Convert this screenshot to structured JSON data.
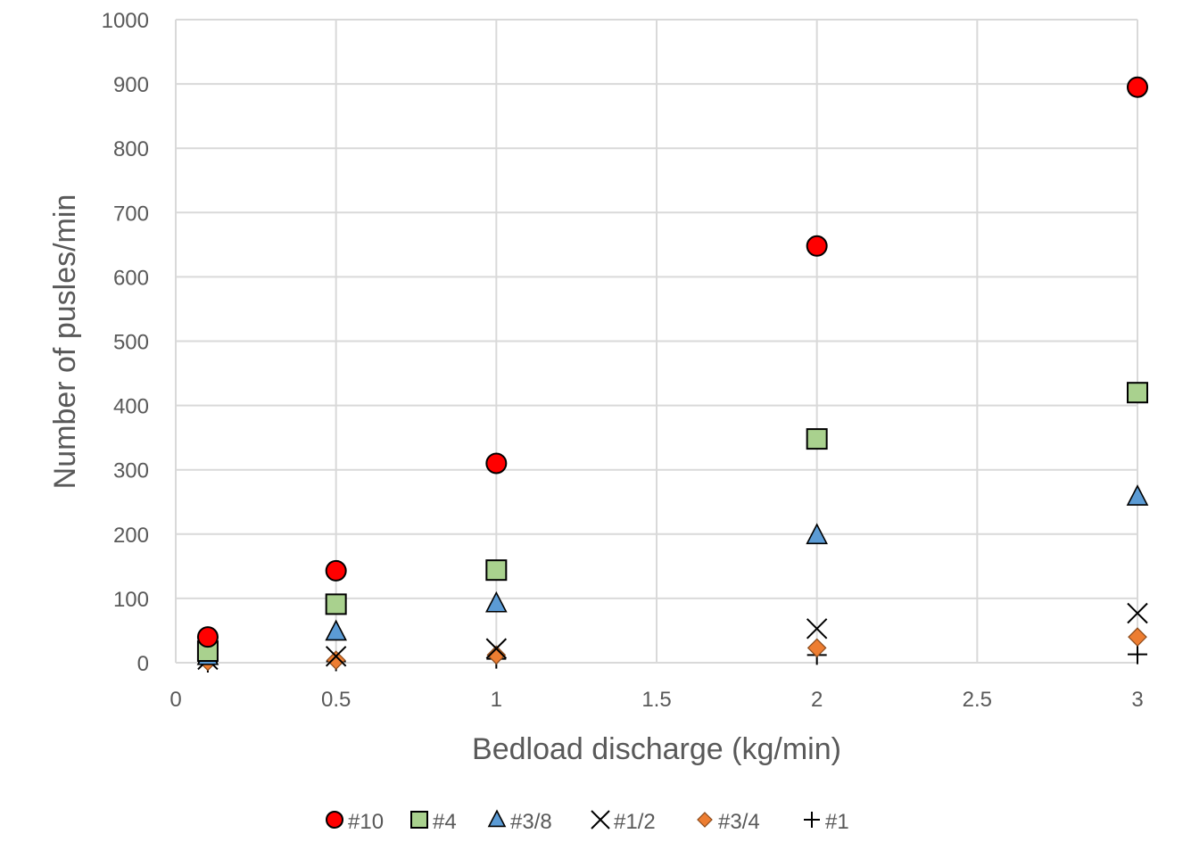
{
  "chart_data": {
    "type": "scatter",
    "title": "",
    "xlabel": "Bedload discharge (kg/min)",
    "ylabel": "Number of pusles/min",
    "xlim": [
      0,
      3
    ],
    "ylim": [
      0,
      1000
    ],
    "xticks": [
      "0",
      "0.5",
      "1",
      "1.5",
      "2",
      "2.5",
      "3"
    ],
    "yticks": [
      "0",
      "100",
      "200",
      "300",
      "400",
      "500",
      "600",
      "700",
      "800",
      "900",
      "1000"
    ],
    "grid": true,
    "legend_position": "bottom",
    "x": [
      0.1,
      0.5,
      1,
      2,
      3
    ],
    "series": [
      {
        "name": "#10",
        "marker": "circle",
        "color": "#ff0000",
        "values": [
          40,
          143,
          310,
          648,
          895
        ]
      },
      {
        "name": "#4",
        "marker": "square",
        "color": "#a9d18e",
        "values": [
          18,
          91,
          144,
          348,
          420
        ]
      },
      {
        "name": "#3/8",
        "marker": "triangle",
        "color": "#5b9bd5",
        "values": [
          10,
          48,
          92,
          198,
          258
        ]
      },
      {
        "name": "#1/2",
        "marker": "x",
        "color": "#000000",
        "values": [
          5,
          10,
          22,
          53,
          77
        ]
      },
      {
        "name": "#3/4",
        "marker": "diamond",
        "color": "#ed7d31",
        "values": [
          2,
          4,
          12,
          23,
          40
        ]
      },
      {
        "name": "#1",
        "marker": "plus",
        "color": "#000000",
        "values": [
          0,
          2,
          6,
          12,
          13
        ]
      }
    ]
  }
}
